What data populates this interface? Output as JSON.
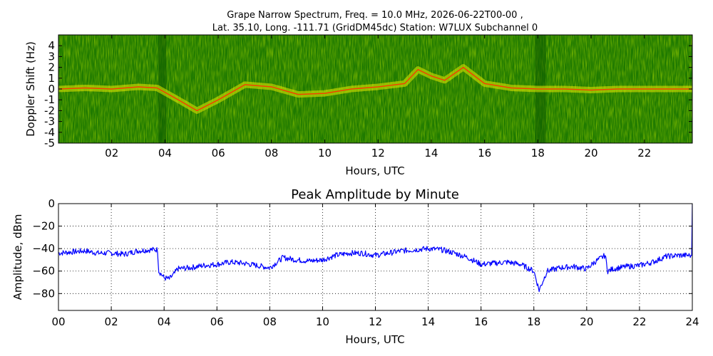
{
  "title_line1": "Grape Narrow Spectrum, Freq. = 10.0 MHz, 2026-06-22T00-00 ,",
  "title_line2": "Lat.  35.10, Long. -111.71 (GridDM45dc) Station: W7LUX Subchannel 0",
  "chart_data": [
    {
      "type": "heatmap",
      "xlabel": "Hours, UTC",
      "ylabel": "Doppler Shift (Hz)",
      "xlim": [
        0,
        23.8
      ],
      "ylim": [
        -5,
        5
      ],
      "x_ticks": [
        2,
        4,
        6,
        8,
        10,
        12,
        14,
        16,
        18,
        20,
        22
      ],
      "x_tick_labels": [
        "02",
        "04",
        "06",
        "08",
        "10",
        "12",
        "14",
        "16",
        "18",
        "20",
        "22"
      ],
      "y_ticks": [
        4,
        3,
        2,
        1,
        0,
        -1,
        -2,
        -3,
        -4,
        -5
      ],
      "y_tick_labels": [
        "4",
        "3",
        "2",
        "1",
        "0",
        "-1",
        "-2",
        "-3",
        "-4",
        "-5"
      ],
      "colors": {
        "background": "#1f7a00",
        "mid": "#8fc400",
        "high": "#e8e800",
        "peak": "#ff3300"
      },
      "doppler_trace": [
        {
          "x": 0.0,
          "y": 0.0
        },
        {
          "x": 1.0,
          "y": 0.1
        },
        {
          "x": 2.0,
          "y": 0.0
        },
        {
          "x": 3.0,
          "y": 0.2
        },
        {
          "x": 3.7,
          "y": 0.1
        },
        {
          "x": 4.5,
          "y": -1.0
        },
        {
          "x": 5.2,
          "y": -2.0
        },
        {
          "x": 6.0,
          "y": -1.0
        },
        {
          "x": 7.0,
          "y": 0.4
        },
        {
          "x": 8.0,
          "y": 0.2
        },
        {
          "x": 9.0,
          "y": -0.5
        },
        {
          "x": 10.0,
          "y": -0.4
        },
        {
          "x": 11.0,
          "y": 0.0
        },
        {
          "x": 12.0,
          "y": 0.2
        },
        {
          "x": 13.0,
          "y": 0.5
        },
        {
          "x": 13.5,
          "y": 1.8
        },
        {
          "x": 14.0,
          "y": 1.2
        },
        {
          "x": 14.5,
          "y": 0.8
        },
        {
          "x": 15.2,
          "y": 2.0
        },
        {
          "x": 16.0,
          "y": 0.5
        },
        {
          "x": 17.0,
          "y": 0.1
        },
        {
          "x": 18.0,
          "y": 0.0
        },
        {
          "x": 19.0,
          "y": 0.0
        },
        {
          "x": 20.0,
          "y": -0.1
        },
        {
          "x": 21.0,
          "y": 0.0
        },
        {
          "x": 22.0,
          "y": 0.0
        },
        {
          "x": 23.0,
          "y": 0.0
        },
        {
          "x": 23.8,
          "y": 0.0
        }
      ],
      "dark_bands": [
        [
          3.75,
          4.05
        ],
        [
          17.9,
          18.3
        ]
      ]
    },
    {
      "type": "line",
      "title": "Peak Amplitude by Minute",
      "xlabel": "Hours, UTC",
      "ylabel": "Amplitude, dBm",
      "xlim": [
        0,
        24
      ],
      "ylim": [
        -95,
        0
      ],
      "grid": true,
      "x_ticks": [
        0,
        2,
        4,
        6,
        8,
        10,
        12,
        14,
        16,
        18,
        20,
        22,
        24
      ],
      "x_tick_labels": [
        "00",
        "02",
        "04",
        "06",
        "08",
        "10",
        "12",
        "14",
        "16",
        "18",
        "20",
        "22",
        "24"
      ],
      "y_ticks": [
        0,
        -20,
        -40,
        -60,
        -80
      ],
      "y_tick_labels": [
        "0",
        "−20",
        "−40",
        "−60",
        "−80"
      ],
      "color": "#0000ff",
      "x": [
        0.0,
        0.5,
        1.0,
        1.5,
        2.0,
        2.5,
        3.0,
        3.5,
        3.75,
        3.8,
        4.0,
        4.2,
        4.4,
        4.5,
        5.0,
        5.5,
        6.0,
        6.5,
        7.0,
        7.5,
        8.0,
        8.5,
        9.0,
        9.5,
        10.0,
        10.5,
        11.0,
        11.5,
        12.0,
        12.5,
        13.0,
        13.5,
        14.0,
        14.5,
        15.0,
        15.5,
        16.0,
        16.5,
        17.0,
        17.5,
        18.0,
        18.2,
        18.5,
        19.0,
        19.5,
        20.0,
        20.3,
        20.7,
        20.8,
        21.0,
        21.5,
        22.0,
        22.5,
        23.0,
        23.5,
        23.95,
        24.0
      ],
      "values": [
        -44,
        -43,
        -42,
        -44,
        -44,
        -45,
        -42,
        -41,
        -41,
        -60,
        -66,
        -67,
        -62,
        -58,
        -57,
        -55,
        -54,
        -52,
        -53,
        -55,
        -57,
        -48,
        -50,
        -51,
        -50,
        -46,
        -44,
        -44,
        -46,
        -44,
        -42,
        -41,
        -40,
        -41,
        -44,
        -48,
        -54,
        -53,
        -52,
        -54,
        -60,
        -77,
        -60,
        -57,
        -56,
        -58,
        -52,
        -46,
        -60,
        -58,
        -56,
        -55,
        -52,
        -47,
        -46,
        -46,
        0
      ]
    }
  ]
}
